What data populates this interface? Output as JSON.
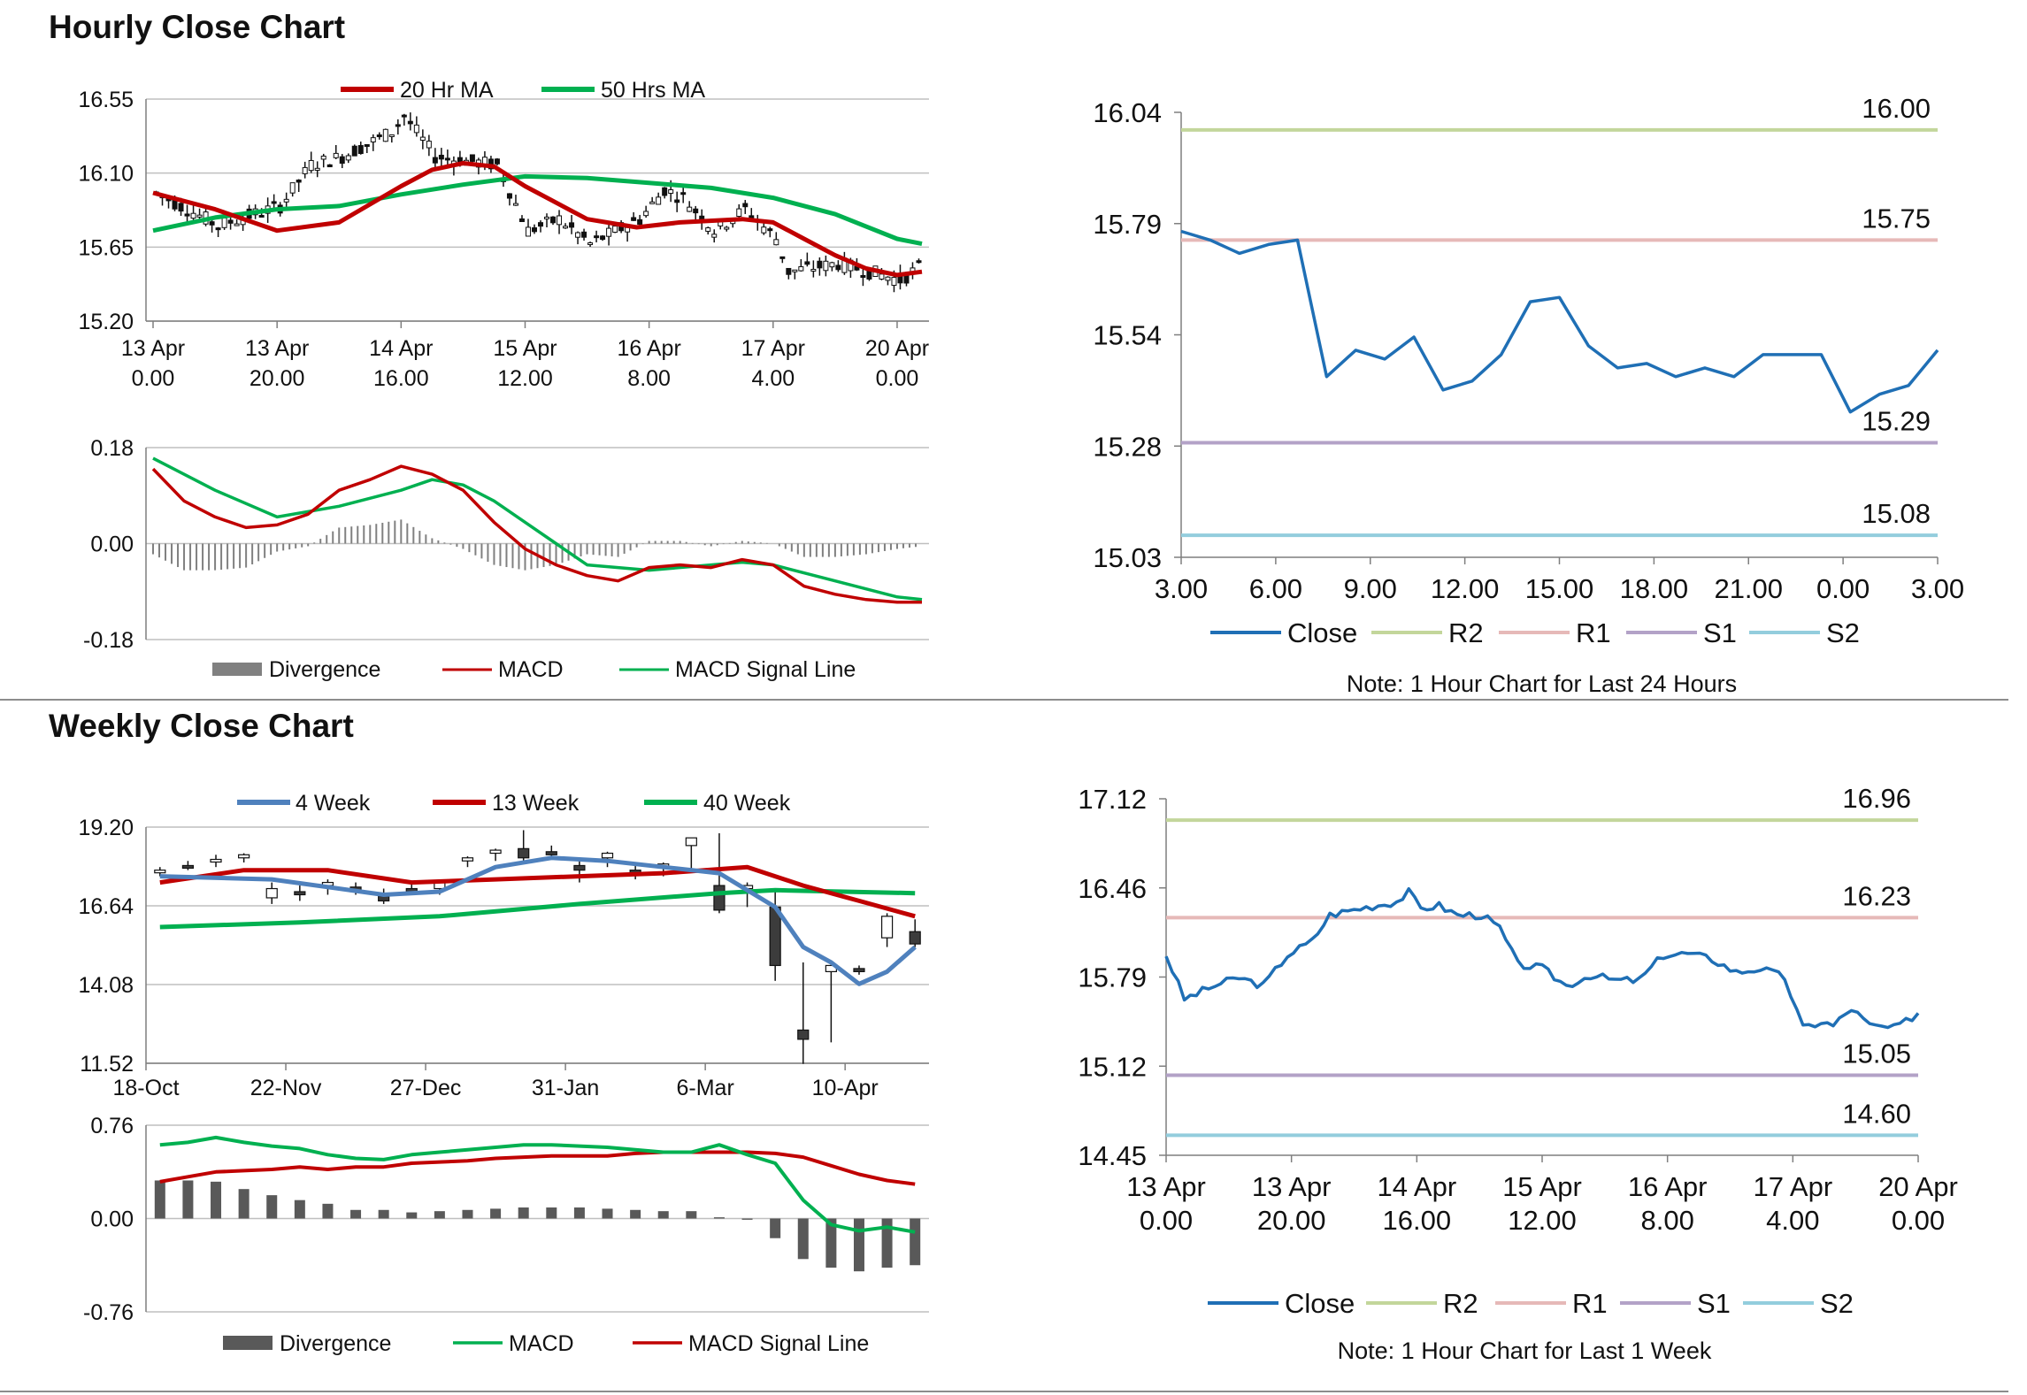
{
  "sections": {
    "hourly_title": "Hourly Close Chart",
    "weekly_title": "Weekly Close Chart"
  },
  "colors": {
    "red": "#c00000",
    "green": "#00b050",
    "blue": "#4f81bd",
    "gray": "#808080",
    "close_blue": "#1f6fb5",
    "r2": "#c3d69b",
    "r1": "#e6b9b8",
    "s1": "#b3a2c7",
    "s2": "#93cddd"
  },
  "chart_data": [
    {
      "id": "hourly_price",
      "type": "candlestick+line",
      "legend": [
        "20 Hr MA",
        "50 Hrs MA"
      ],
      "ylim": [
        15.2,
        16.55
      ],
      "yticks": [
        "16.55",
        "16.10",
        "15.65",
        "15.20"
      ],
      "xtick_values": [
        0,
        20,
        40,
        60,
        80,
        100,
        120
      ],
      "xticks": [
        [
          "13 Apr",
          "0.00"
        ],
        [
          "13 Apr",
          "20.00"
        ],
        [
          "14 Apr",
          "16.00"
        ],
        [
          "15 Apr",
          "12.00"
        ],
        [
          "16 Apr",
          "8.00"
        ],
        [
          "17 Apr",
          "4.00"
        ],
        [
          "20 Apr",
          "0.00"
        ]
      ],
      "xlim": [
        0,
        124
      ],
      "ma20": [
        [
          0,
          15.98
        ],
        [
          10,
          15.88
        ],
        [
          20,
          15.75
        ],
        [
          30,
          15.8
        ],
        [
          40,
          16.02
        ],
        [
          45,
          16.12
        ],
        [
          50,
          16.16
        ],
        [
          55,
          16.14
        ],
        [
          60,
          16.02
        ],
        [
          65,
          15.92
        ],
        [
          70,
          15.82
        ],
        [
          78,
          15.77
        ],
        [
          85,
          15.8
        ],
        [
          95,
          15.82
        ],
        [
          100,
          15.8
        ],
        [
          105,
          15.7
        ],
        [
          110,
          15.6
        ],
        [
          115,
          15.52
        ],
        [
          120,
          15.48
        ],
        [
          124,
          15.5
        ]
      ],
      "ma50": [
        [
          0,
          15.75
        ],
        [
          10,
          15.83
        ],
        [
          20,
          15.88
        ],
        [
          30,
          15.9
        ],
        [
          40,
          15.97
        ],
        [
          50,
          16.03
        ],
        [
          60,
          16.08
        ],
        [
          70,
          16.07
        ],
        [
          80,
          16.04
        ],
        [
          90,
          16.01
        ],
        [
          100,
          15.95
        ],
        [
          110,
          15.85
        ],
        [
          120,
          15.7
        ],
        [
          124,
          15.67
        ]
      ]
    },
    {
      "id": "hourly_macd",
      "type": "bar+line",
      "legend": [
        "Divergence",
        "MACD",
        "MACD Signal Line"
      ],
      "ylim": [
        -0.18,
        0.18
      ],
      "yticks": [
        "0.18",
        "0.00",
        "-0.18"
      ],
      "xlim": [
        0,
        124
      ],
      "macd": [
        [
          0,
          0.14
        ],
        [
          5,
          0.08
        ],
        [
          10,
          0.05
        ],
        [
          15,
          0.03
        ],
        [
          20,
          0.035
        ],
        [
          25,
          0.055
        ],
        [
          30,
          0.1
        ],
        [
          35,
          0.12
        ],
        [
          40,
          0.145
        ],
        [
          45,
          0.13
        ],
        [
          50,
          0.1
        ],
        [
          55,
          0.04
        ],
        [
          60,
          -0.01
        ],
        [
          65,
          -0.04
        ],
        [
          70,
          -0.06
        ],
        [
          75,
          -0.07
        ],
        [
          80,
          -0.045
        ],
        [
          85,
          -0.04
        ],
        [
          90,
          -0.045
        ],
        [
          95,
          -0.03
        ],
        [
          100,
          -0.04
        ],
        [
          105,
          -0.08
        ],
        [
          110,
          -0.095
        ],
        [
          115,
          -0.105
        ],
        [
          120,
          -0.11
        ],
        [
          124,
          -0.11
        ]
      ],
      "signal": [
        [
          0,
          0.16
        ],
        [
          10,
          0.1
        ],
        [
          20,
          0.05
        ],
        [
          30,
          0.07
        ],
        [
          40,
          0.1
        ],
        [
          45,
          0.12
        ],
        [
          50,
          0.11
        ],
        [
          55,
          0.08
        ],
        [
          60,
          0.04
        ],
        [
          65,
          0
        ],
        [
          70,
          -0.04
        ],
        [
          80,
          -0.05
        ],
        [
          90,
          -0.04
        ],
        [
          95,
          -0.035
        ],
        [
          100,
          -0.04
        ],
        [
          110,
          -0.07
        ],
        [
          120,
          -0.1
        ],
        [
          124,
          -0.105
        ]
      ]
    },
    {
      "id": "hourly_close_24h",
      "type": "line",
      "legend": [
        "Close",
        "R2",
        "R1",
        "S1",
        "S2"
      ],
      "ylim": [
        15.03,
        16.04
      ],
      "yticks": [
        "16.04",
        "15.79",
        "15.54",
        "15.28",
        "15.03"
      ],
      "xticks": [
        "3.00",
        "6.00",
        "9.00",
        "12.00",
        "15.00",
        "18.00",
        "21.00",
        "0.00",
        "3.00"
      ],
      "close": [
        15.77,
        15.75,
        15.72,
        15.74,
        15.75,
        15.44,
        15.5,
        15.48,
        15.53,
        15.41,
        15.43,
        15.49,
        15.61,
        15.62,
        15.51,
        15.46,
        15.47,
        15.44,
        15.46,
        15.44,
        15.49,
        15.49,
        15.49,
        15.36,
        15.4,
        15.42,
        15.5
      ],
      "levels": {
        "R2": 16.0,
        "R1": 15.75,
        "S1": 15.29,
        "S2": 15.08
      },
      "level_labels": {
        "R2": "16.00",
        "R1": "15.75",
        "S1": "15.29",
        "S2": "15.08"
      },
      "note": "Note: 1 Hour Chart for Last 24 Hours"
    },
    {
      "id": "weekly_price",
      "type": "candlestick+line",
      "legend": [
        "4 Week",
        "13 Week",
        "40 Week"
      ],
      "ylim": [
        11.52,
        19.2
      ],
      "yticks": [
        "19.20",
        "16.64",
        "14.08",
        "11.52"
      ],
      "xticks": [
        "18-Oct",
        "22-Nov",
        "27-Dec",
        "31-Jan",
        "6-Mar",
        "10-Apr"
      ],
      "xtick_index": [
        0,
        5,
        10,
        15,
        20,
        25
      ],
      "candles": [
        [
          17.75,
          17.9,
          17.6,
          17.8
        ],
        [
          17.95,
          18.1,
          17.8,
          17.9
        ],
        [
          18.1,
          18.3,
          17.9,
          18.15
        ],
        [
          18.2,
          18.35,
          18.05,
          18.3
        ],
        [
          16.9,
          17.4,
          16.7,
          17.2
        ],
        [
          17.1,
          17.3,
          16.8,
          17.0
        ],
        [
          17.3,
          17.5,
          17.0,
          17.4
        ],
        [
          17.25,
          17.4,
          17.0,
          17.1
        ],
        [
          16.95,
          17.2,
          16.7,
          16.8
        ],
        [
          17.2,
          17.4,
          17.0,
          17.1
        ],
        [
          17.2,
          17.45,
          17.0,
          17.4
        ],
        [
          18.1,
          18.25,
          17.9,
          18.2
        ],
        [
          18.35,
          18.5,
          18.1,
          18.45
        ],
        [
          18.5,
          19.1,
          18.1,
          18.2
        ],
        [
          18.4,
          18.6,
          18.15,
          18.3
        ],
        [
          17.95,
          18.2,
          17.4,
          17.8
        ],
        [
          18.2,
          18.4,
          17.9,
          18.35
        ],
        [
          17.8,
          17.95,
          17.5,
          17.7
        ],
        [
          17.9,
          18.05,
          17.6,
          18.0
        ],
        [
          18.6,
          18.8,
          17.8,
          18.85
        ],
        [
          17.3,
          19.0,
          16.4,
          16.5
        ],
        [
          17.2,
          17.4,
          16.6,
          17.3
        ],
        [
          16.6,
          17.2,
          14.2,
          14.7
        ],
        [
          12.6,
          14.8,
          11.5,
          12.3
        ],
        [
          14.5,
          14.8,
          12.2,
          14.7
        ],
        [
          14.6,
          14.7,
          14.4,
          14.5
        ],
        [
          15.6,
          16.4,
          15.3,
          16.3
        ],
        [
          15.8,
          16.2,
          15.3,
          15.4
        ]
      ],
      "w4": [
        [
          0,
          17.6
        ],
        [
          4,
          17.5
        ],
        [
          8,
          17.0
        ],
        [
          10,
          17.1
        ],
        [
          12,
          17.9
        ],
        [
          14,
          18.2
        ],
        [
          16,
          18.1
        ],
        [
          18,
          17.9
        ],
        [
          20,
          17.7
        ],
        [
          22,
          16.6
        ],
        [
          23,
          15.3
        ],
        [
          24,
          14.8
        ],
        [
          25,
          14.1
        ],
        [
          26,
          14.5
        ],
        [
          27,
          15.3
        ]
      ],
      "w13": [
        [
          0,
          17.4
        ],
        [
          3,
          17.8
        ],
        [
          6,
          17.8
        ],
        [
          9,
          17.4
        ],
        [
          12,
          17.5
        ],
        [
          15,
          17.6
        ],
        [
          18,
          17.7
        ],
        [
          21,
          17.9
        ],
        [
          23,
          17.3
        ],
        [
          25,
          16.8
        ],
        [
          27,
          16.3
        ]
      ],
      "w40": [
        [
          0,
          15.95
        ],
        [
          5,
          16.1
        ],
        [
          10,
          16.3
        ],
        [
          15,
          16.7
        ],
        [
          20,
          17.05
        ],
        [
          22,
          17.15
        ],
        [
          27,
          17.05
        ]
      ]
    },
    {
      "id": "weekly_macd",
      "type": "bar+line",
      "legend": [
        "Divergence",
        "MACD",
        "MACD Signal Line"
      ],
      "ylim": [
        -0.76,
        0.76
      ],
      "yticks": [
        "0.76",
        "0.00",
        "-0.76"
      ],
      "divergence": [
        0.31,
        0.31,
        0.3,
        0.24,
        0.19,
        0.15,
        0.12,
        0.07,
        0.07,
        0.05,
        0.06,
        0.07,
        0.08,
        0.09,
        0.09,
        0.09,
        0.08,
        0.07,
        0.06,
        0.06,
        0.01,
        -0.01,
        -0.16,
        -0.33,
        -0.4,
        -0.43,
        -0.4,
        -0.38
      ],
      "macd": [
        0.6,
        0.62,
        0.66,
        0.62,
        0.59,
        0.57,
        0.52,
        0.49,
        0.48,
        0.52,
        0.54,
        0.56,
        0.58,
        0.6,
        0.6,
        0.59,
        0.58,
        0.56,
        0.54,
        0.54,
        0.6,
        0.52,
        0.45,
        0.15,
        -0.05,
        -0.1,
        -0.07,
        -0.11
      ],
      "signal": [
        0.3,
        0.34,
        0.38,
        0.39,
        0.4,
        0.42,
        0.4,
        0.42,
        0.42,
        0.45,
        0.46,
        0.47,
        0.49,
        0.5,
        0.51,
        0.51,
        0.51,
        0.53,
        0.54,
        0.54,
        0.54,
        0.54,
        0.53,
        0.5,
        0.43,
        0.36,
        0.31,
        0.28
      ]
    },
    {
      "id": "hourly_close_1w",
      "type": "line",
      "legend": [
        "Close",
        "R2",
        "R1",
        "S1",
        "S2"
      ],
      "ylim": [
        14.45,
        17.12
      ],
      "yticks": [
        "17.12",
        "16.46",
        "15.79",
        "15.12",
        "14.45"
      ],
      "xticks": [
        [
          "13 Apr",
          "0.00"
        ],
        [
          "13 Apr",
          "20.00"
        ],
        [
          "14 Apr",
          "16.00"
        ],
        [
          "15 Apr",
          "12.00"
        ],
        [
          "16 Apr",
          "8.00"
        ],
        [
          "17 Apr",
          "4.00"
        ],
        [
          "20 Apr",
          "0.00"
        ]
      ],
      "close_keys": [
        [
          0,
          15.95
        ],
        [
          3,
          15.62
        ],
        [
          8,
          15.72
        ],
        [
          12,
          15.78
        ],
        [
          16,
          15.72
        ],
        [
          20,
          15.95
        ],
        [
          24,
          16.05
        ],
        [
          27,
          16.25
        ],
        [
          32,
          16.3
        ],
        [
          38,
          16.35
        ],
        [
          40,
          16.42
        ],
        [
          42,
          16.3
        ],
        [
          45,
          16.32
        ],
        [
          48,
          16.25
        ],
        [
          52,
          16.25
        ],
        [
          55,
          16.15
        ],
        [
          58,
          15.88
        ],
        [
          62,
          15.85
        ],
        [
          66,
          15.72
        ],
        [
          70,
          15.8
        ],
        [
          74,
          15.76
        ],
        [
          78,
          15.76
        ],
        [
          82,
          15.95
        ],
        [
          86,
          15.96
        ],
        [
          90,
          15.92
        ],
        [
          94,
          15.82
        ],
        [
          98,
          15.85
        ],
        [
          102,
          15.78
        ],
        [
          105,
          15.4
        ],
        [
          108,
          15.45
        ],
        [
          110,
          15.42
        ],
        [
          113,
          15.55
        ],
        [
          116,
          15.42
        ],
        [
          120,
          15.4
        ],
        [
          122,
          15.45
        ],
        [
          124,
          15.52
        ]
      ],
      "levels": {
        "R2": 16.96,
        "R1": 16.23,
        "S1": 15.05,
        "S2": 14.6
      },
      "level_labels": {
        "R2": "16.96",
        "R1": "16.23",
        "S1": "15.05",
        "S2": "14.60"
      },
      "note": "Note: 1 Hour Chart for Last 1 Week"
    }
  ]
}
